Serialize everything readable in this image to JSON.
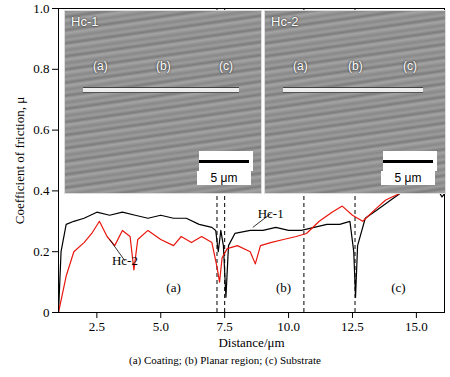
{
  "chart_data": {
    "type": "line",
    "xlabel": "Distance/μm",
    "ylabel": "Coefficient of friction, μ",
    "caption": "(a)  Coating;  (b)  Planar  region; (c) Substrate",
    "xlim": [
      1,
      16.1
    ],
    "ylim": [
      0,
      1
    ],
    "xticks": [
      2.5,
      {
        "value": 5,
        "label": "5.0"
      },
      7.5,
      {
        "value": 10,
        "label": "10.0"
      },
      12.5,
      {
        "value": 15,
        "label": "15.0"
      }
    ],
    "yticks": [
      0,
      0.2,
      0.4,
      0.6,
      0.8,
      {
        "value": 1,
        "label": "1.0"
      }
    ],
    "series": [
      {
        "name": "Hc-1",
        "color": "#000000",
        "x": [
          1.0,
          1.1,
          1.3,
          1.6,
          2.0,
          2.5,
          3.0,
          3.5,
          4.0,
          4.5,
          5.0,
          5.5,
          6.0,
          6.5,
          7.0,
          7.15,
          7.25,
          7.35,
          7.45,
          7.55,
          7.65,
          7.9,
          8.5,
          9.0,
          9.5,
          10.0,
          10.5,
          11.0,
          11.5,
          12.0,
          12.4,
          12.55,
          12.62,
          12.7,
          13.0,
          13.5,
          14.0,
          14.5,
          15.0,
          15.5,
          15.8,
          16.0,
          16.1
        ],
        "values": [
          0,
          0.2,
          0.29,
          0.3,
          0.31,
          0.33,
          0.32,
          0.33,
          0.32,
          0.31,
          0.32,
          0.31,
          0.31,
          0.29,
          0.28,
          0.27,
          0.2,
          0.27,
          0.22,
          0.05,
          0.22,
          0.26,
          0.27,
          0.27,
          0.28,
          0.27,
          0.27,
          0.28,
          0.29,
          0.29,
          0.3,
          0.2,
          0.05,
          0.22,
          0.31,
          0.34,
          0.37,
          0.4,
          0.41,
          0.4,
          0.41,
          0.38,
          0.39
        ]
      },
      {
        "name": "Hc-2",
        "color": "#e8160c",
        "x": [
          1.0,
          1.3,
          1.6,
          2.0,
          2.3,
          2.6,
          2.9,
          3.2,
          3.5,
          3.8,
          3.95,
          4.1,
          4.5,
          5.0,
          5.5,
          5.8,
          6.2,
          6.6,
          7.0,
          7.2,
          7.3,
          7.4,
          7.6,
          8.0,
          8.5,
          8.7,
          8.9,
          9.3,
          9.8,
          10.3,
          10.7,
          11.2,
          11.7,
          12.1,
          12.5,
          12.9,
          13.4,
          13.8,
          14.3,
          14.8,
          15.3,
          15.7,
          16.1
        ],
        "values": [
          0,
          0.12,
          0.2,
          0.23,
          0.26,
          0.3,
          0.25,
          0.22,
          0.27,
          0.25,
          0.14,
          0.24,
          0.27,
          0.24,
          0.22,
          0.25,
          0.23,
          0.25,
          0.23,
          0.15,
          0.1,
          0.18,
          0.21,
          0.22,
          0.2,
          0.16,
          0.22,
          0.23,
          0.24,
          0.25,
          0.26,
          0.3,
          0.33,
          0.35,
          0.32,
          0.3,
          0.34,
          0.37,
          0.39,
          0.41,
          0.42,
          0.44,
          0.43
        ]
      }
    ],
    "boundaries": [
      7.2,
      7.5,
      10.6,
      12.6
    ],
    "line_style": "dashed",
    "annotations": [
      {
        "text": "Hc-1",
        "x": 9.3,
        "y": 0.325,
        "points_to": [
          8.6,
          0.28
        ]
      },
      {
        "text": "Hc-2",
        "x": 3.6,
        "y": 0.17,
        "points_to": [
          3.0,
          0.24
        ]
      },
      {
        "text": "(a)",
        "x": 5.5,
        "y": 0.08
      },
      {
        "text": "(b)",
        "x": 9.8,
        "y": 0.08
      },
      {
        "text": "(c)",
        "x": 14.3,
        "y": 0.08
      }
    ],
    "insets": [
      {
        "title": "Hc-1",
        "labels": [
          "(a)",
          "(b)",
          "(c)"
        ],
        "scale_bar": "5 μm"
      },
      {
        "title": "Hc-2",
        "labels": [
          "(a)",
          "(b)",
          "(c)"
        ],
        "scale_bar": "5 μm"
      }
    ]
  }
}
